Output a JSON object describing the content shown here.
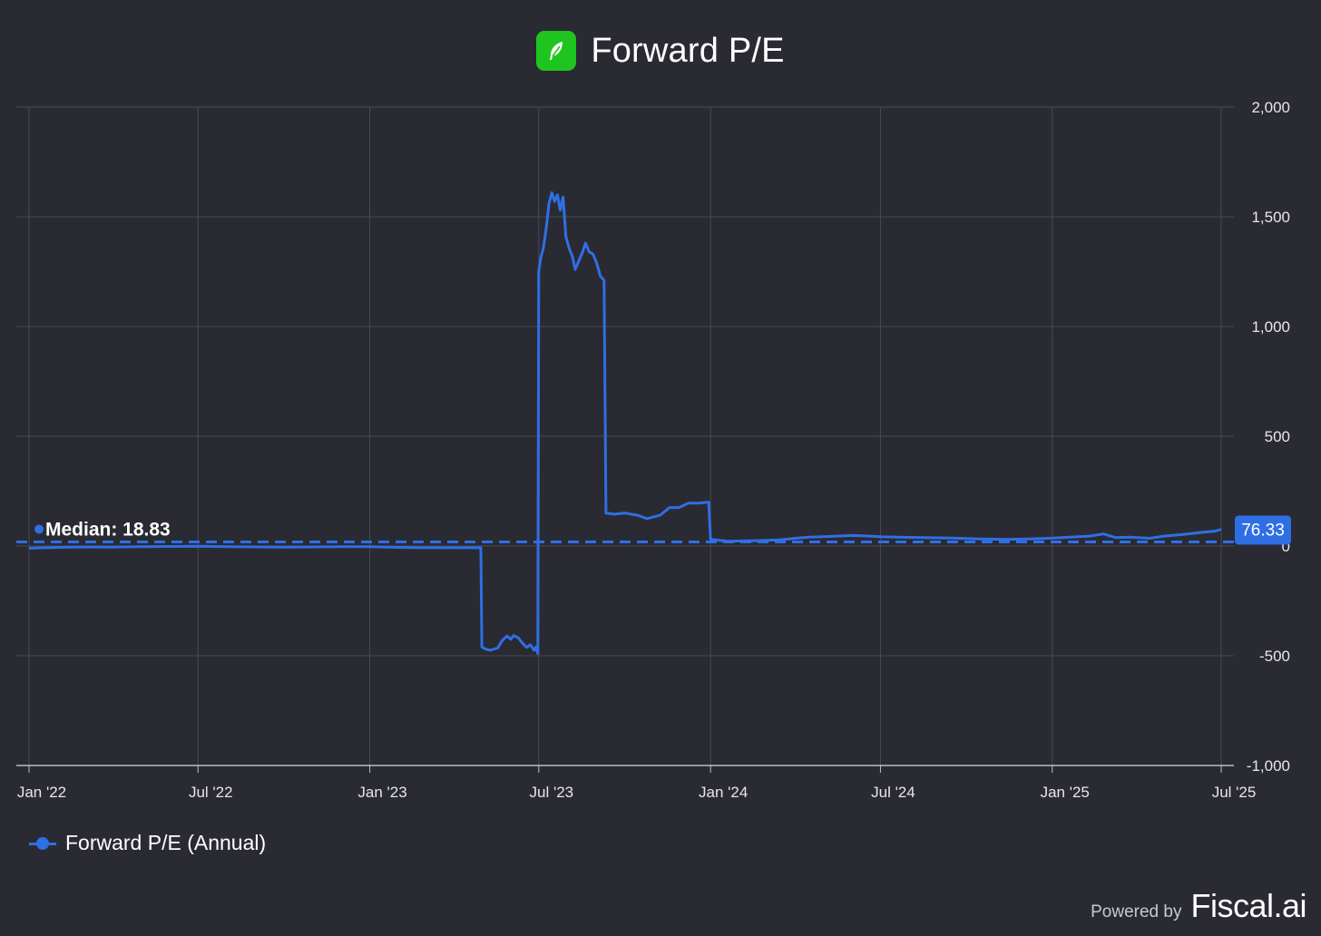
{
  "header": {
    "title": "Forward P/E",
    "logo_icon": "feather-icon",
    "logo_color": "#1ec51e"
  },
  "colors": {
    "background": "#2a2a33",
    "series": "#2f6fe4",
    "grid": "#4a4a55"
  },
  "chart_data": {
    "type": "line",
    "title": "Forward P/E",
    "xlabel": "",
    "ylabel": "",
    "x_ticks": [
      "Jan '22",
      "Jul '22",
      "Jan '23",
      "Jul '23",
      "Jan '24",
      "Jul '24",
      "Jan '25",
      "Jul '25"
    ],
    "y_ticks": [
      "2,000",
      "1,500",
      "1,000",
      "500",
      "0",
      "-500",
      "-1,000"
    ],
    "y_tick_values": [
      2000,
      1500,
      1000,
      500,
      0,
      -500,
      -1000
    ],
    "xlim": [
      "2022-01-01",
      "2025-07-01"
    ],
    "ylim": [
      -1000,
      2000
    ],
    "grid": true,
    "legend_position": "bottom-left",
    "median": {
      "label": "Median: 18.83",
      "value": 18.83
    },
    "last_value_label": "76.33",
    "series": [
      {
        "name": "Forward P/E (Annual)",
        "points": [
          [
            "2022-01-01",
            -10
          ],
          [
            "2022-02-01",
            -6
          ],
          [
            "2022-03-01",
            -4
          ],
          [
            "2022-04-01",
            -5
          ],
          [
            "2022-05-01",
            -3
          ],
          [
            "2022-06-01",
            -2
          ],
          [
            "2022-07-01",
            -1
          ],
          [
            "2022-08-01",
            -3
          ],
          [
            "2022-09-01",
            -4
          ],
          [
            "2022-10-01",
            -5
          ],
          [
            "2022-11-01",
            -4
          ],
          [
            "2022-12-01",
            -3
          ],
          [
            "2023-01-01",
            -3
          ],
          [
            "2023-02-01",
            -6
          ],
          [
            "2023-03-01",
            -8
          ],
          [
            "2023-04-01",
            -8
          ],
          [
            "2023-04-30",
            -8
          ],
          [
            "2023-05-01",
            -460
          ],
          [
            "2023-05-05",
            -470
          ],
          [
            "2023-05-10",
            -475
          ],
          [
            "2023-05-18",
            -465
          ],
          [
            "2023-05-23",
            -430
          ],
          [
            "2023-05-28",
            -410
          ],
          [
            "2023-06-01",
            -425
          ],
          [
            "2023-06-04",
            -408
          ],
          [
            "2023-06-09",
            -418
          ],
          [
            "2023-06-13",
            -440
          ],
          [
            "2023-06-18",
            -462
          ],
          [
            "2023-06-22",
            -450
          ],
          [
            "2023-06-26",
            -475
          ],
          [
            "2023-06-28",
            -460
          ],
          [
            "2023-06-30",
            -490
          ],
          [
            "2023-07-01",
            1250
          ],
          [
            "2023-07-03",
            1310
          ],
          [
            "2023-07-06",
            1360
          ],
          [
            "2023-07-09",
            1450
          ],
          [
            "2023-07-12",
            1560
          ],
          [
            "2023-07-15",
            1610
          ],
          [
            "2023-07-18",
            1570
          ],
          [
            "2023-07-21",
            1600
          ],
          [
            "2023-07-24",
            1530
          ],
          [
            "2023-07-27",
            1590
          ],
          [
            "2023-07-30",
            1410
          ],
          [
            "2023-08-03",
            1350
          ],
          [
            "2023-08-06",
            1320
          ],
          [
            "2023-08-09",
            1260
          ],
          [
            "2023-08-13",
            1300
          ],
          [
            "2023-08-17",
            1340
          ],
          [
            "2023-08-20",
            1380
          ],
          [
            "2023-08-24",
            1340
          ],
          [
            "2023-08-28",
            1330
          ],
          [
            "2023-09-01",
            1290
          ],
          [
            "2023-09-05",
            1230
          ],
          [
            "2023-09-09",
            1210
          ],
          [
            "2023-09-11",
            150
          ],
          [
            "2023-09-20",
            145
          ],
          [
            "2023-10-01",
            150
          ],
          [
            "2023-10-15",
            140
          ],
          [
            "2023-10-25",
            125
          ],
          [
            "2023-11-08",
            140
          ],
          [
            "2023-11-18",
            175
          ],
          [
            "2023-11-28",
            175
          ],
          [
            "2023-12-08",
            195
          ],
          [
            "2023-12-20",
            195
          ],
          [
            "2023-12-30",
            200
          ],
          [
            "2024-01-01",
            30
          ],
          [
            "2024-01-20",
            22
          ],
          [
            "2024-02-15",
            24
          ],
          [
            "2024-03-15",
            28
          ],
          [
            "2024-04-01",
            35
          ],
          [
            "2024-04-15",
            40
          ],
          [
            "2024-05-01",
            42
          ],
          [
            "2024-05-15",
            45
          ],
          [
            "2024-06-01",
            48
          ],
          [
            "2024-06-15",
            46
          ],
          [
            "2024-07-01",
            42
          ],
          [
            "2024-07-20",
            40
          ],
          [
            "2024-08-15",
            38
          ],
          [
            "2024-09-15",
            36
          ],
          [
            "2024-10-15",
            32
          ],
          [
            "2024-11-15",
            30
          ],
          [
            "2024-12-15",
            33
          ],
          [
            "2025-01-01",
            36
          ],
          [
            "2025-01-20",
            40
          ],
          [
            "2025-02-10",
            45
          ],
          [
            "2025-02-25",
            55
          ],
          [
            "2025-03-10",
            38
          ],
          [
            "2025-03-25",
            40
          ],
          [
            "2025-04-15",
            35
          ],
          [
            "2025-05-01",
            45
          ],
          [
            "2025-05-20",
            52
          ],
          [
            "2025-06-10",
            62
          ],
          [
            "2025-06-25",
            68
          ],
          [
            "2025-07-01",
            76.33
          ]
        ]
      }
    ]
  },
  "legend": {
    "label": "Forward P/E (Annual)"
  },
  "footer": {
    "powered_by": "Powered by",
    "brand": "Fiscal.ai"
  }
}
